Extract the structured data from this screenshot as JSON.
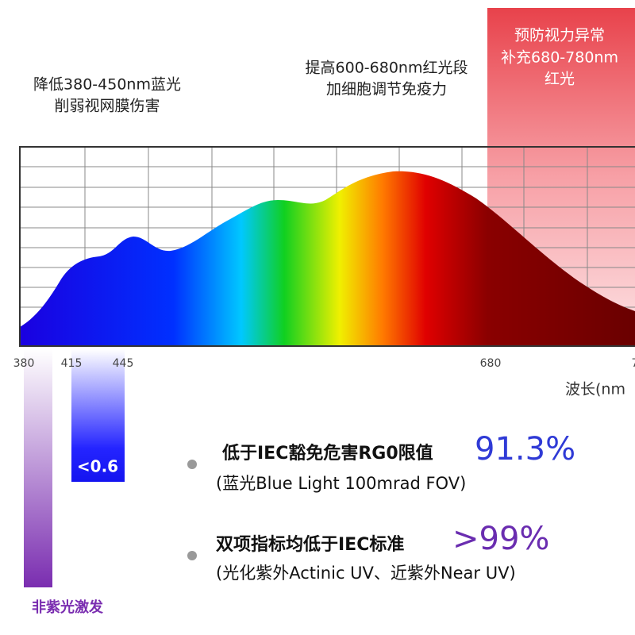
{
  "blue_note": {
    "lines": [
      "降低380-450nm蓝光",
      "削弱视网膜伤害"
    ]
  },
  "red_boost_note": {
    "lines": [
      "提高600-680nm红光段",
      "加细胞调节免疫力"
    ]
  },
  "red_band_note": {
    "lines": [
      "预防视力异常",
      "补充680-780nm",
      "红光"
    ]
  },
  "x_axis": {
    "ticks": [
      "380",
      "415",
      "445",
      "680",
      "7"
    ],
    "label": "波长(nm"
  },
  "blue_bar": {
    "label": "<0.6"
  },
  "uv_bar": {
    "label": "非紫光激发"
  },
  "claims": [
    {
      "text": "低于IEC豁免危害RG0限值",
      "figure": "91.3%",
      "detail": "(蓝光Blue Light 100mrad FOV)"
    },
    {
      "text": "双项指标均低于IEC标准",
      "figure": ">99%",
      "detail": "(光化紫外Actinic UV、近紫外Near UV)"
    }
  ]
}
